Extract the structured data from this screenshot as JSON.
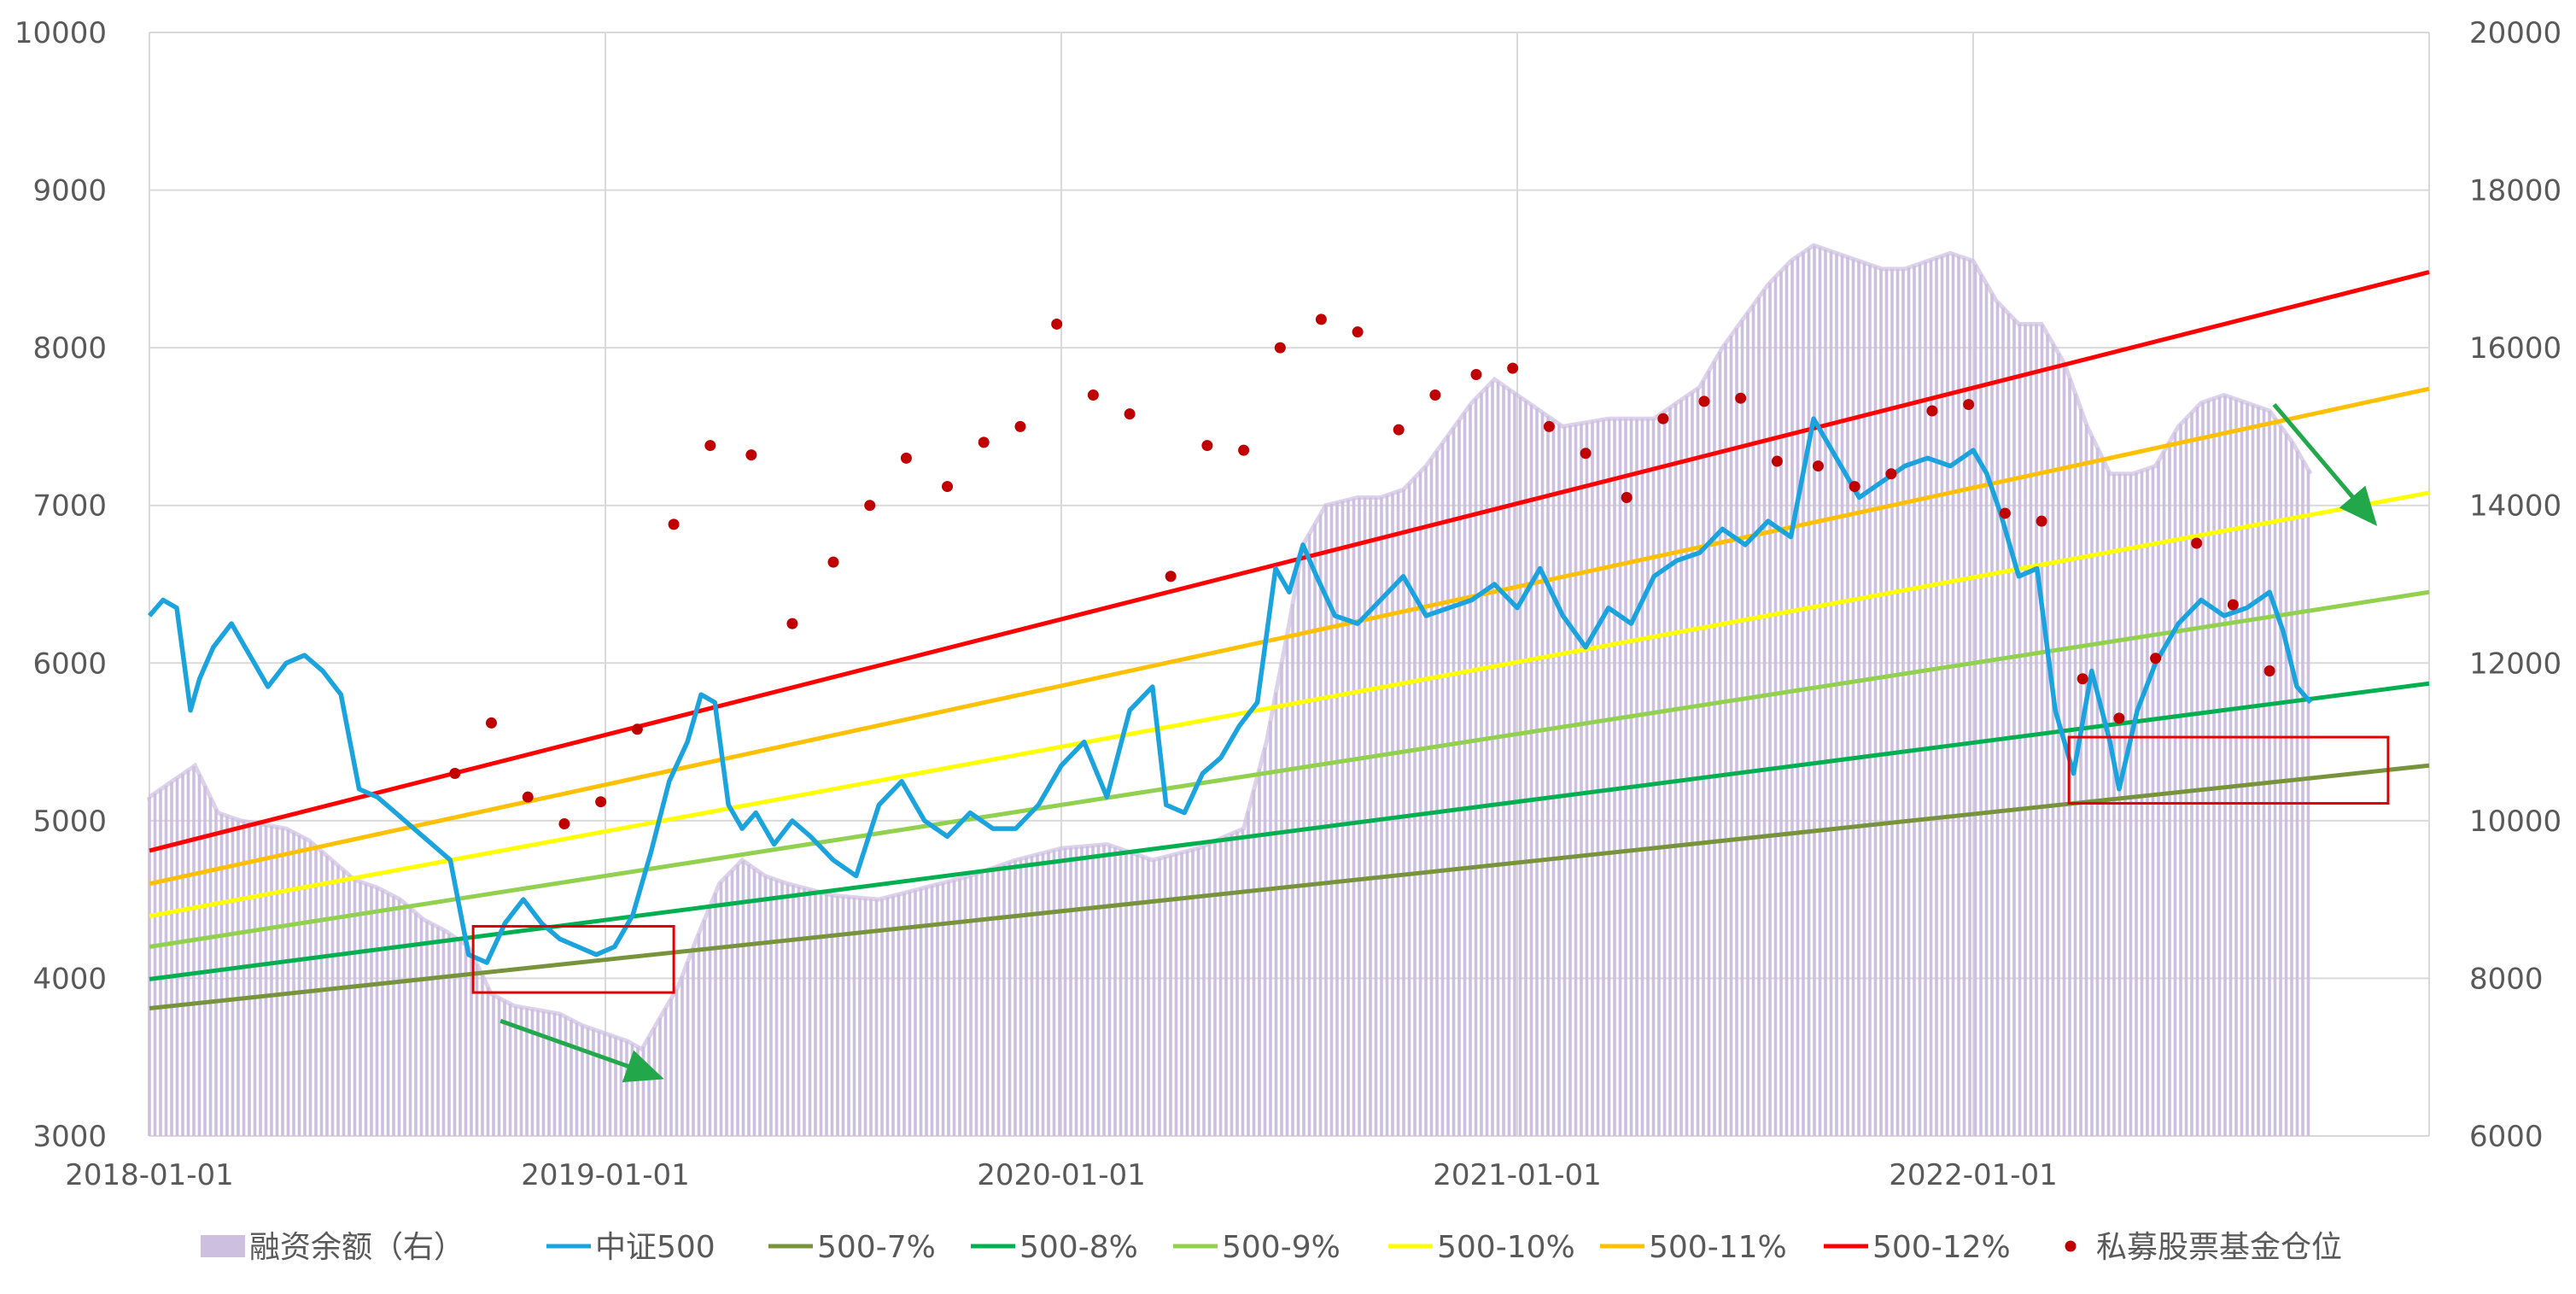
{
  "chart_data": {
    "type": "line",
    "title": "",
    "x_ticks": [
      "2018-01-01",
      "2019-01-01",
      "2020-01-01",
      "2021-01-01",
      "2022-01-01"
    ],
    "x_range": [
      2018.0,
      2023.0
    ],
    "y_left": {
      "min": 3000,
      "max": 10000,
      "ticks": [
        "3000",
        "4000",
        "5000",
        "6000",
        "7000",
        "8000",
        "9000",
        "10000"
      ]
    },
    "y_right": {
      "min": 6000,
      "max": 20000,
      "ticks": [
        "6000",
        "8000",
        "10000",
        "12000",
        "14000",
        "16000",
        "18000",
        "20000"
      ]
    },
    "grid": true,
    "legend_position": "bottom",
    "legend": [
      {
        "key": "margin",
        "label": "融资余额（右）"
      },
      {
        "key": "csi500",
        "label": "中证500"
      },
      {
        "key": "g7",
        "label": "500-7%"
      },
      {
        "key": "g8",
        "label": "500-8%"
      },
      {
        "key": "g9",
        "label": "500-9%"
      },
      {
        "key": "g10",
        "label": "500-10%"
      },
      {
        "key": "g11",
        "label": "500-11%"
      },
      {
        "key": "g12",
        "label": "500-12%"
      },
      {
        "key": "position",
        "label": "私募股票基金仓位"
      }
    ],
    "colors": {
      "margin": "#cdbfe0",
      "csi500": "#1aa3dc",
      "g7": "#77933c",
      "g8": "#00b050",
      "g9": "#92d050",
      "g10": "#ffff00",
      "g11": "#ffc000",
      "g12": "#ff0000",
      "position": "#c00000",
      "box": "#e00000",
      "arrow": "#22a84a",
      "grid": "#d9d9d9",
      "text": "#595959"
    },
    "growth_lines": [
      {
        "key": "g7",
        "name": "500-7%",
        "start": 3810,
        "end": 5350
      },
      {
        "key": "g8",
        "name": "500-8%",
        "start": 3995,
        "end": 5870
      },
      {
        "key": "g9",
        "name": "500-9%",
        "start": 4200,
        "end": 6450
      },
      {
        "key": "g10",
        "name": "500-10%",
        "start": 4395,
        "end": 7080
      },
      {
        "key": "g11",
        "name": "500-11%",
        "start": 4600,
        "end": 7740
      },
      {
        "key": "g12",
        "name": "500-12%",
        "start": 4810,
        "end": 8480
      }
    ],
    "series_csi500": {
      "x": [
        2018.0,
        2018.03,
        2018.06,
        2018.09,
        2018.11,
        2018.14,
        2018.18,
        2018.22,
        2018.26,
        2018.3,
        2018.34,
        2018.38,
        2018.42,
        2018.46,
        2018.5,
        2018.54,
        2018.58,
        2018.62,
        2018.66,
        2018.7,
        2018.74,
        2018.78,
        2018.82,
        2018.86,
        2018.9,
        2018.94,
        2018.98,
        2019.02,
        2019.06,
        2019.1,
        2019.14,
        2019.18,
        2019.21,
        2019.24,
        2019.27,
        2019.3,
        2019.33,
        2019.37,
        2019.41,
        2019.45,
        2019.5,
        2019.55,
        2019.6,
        2019.65,
        2019.7,
        2019.75,
        2019.8,
        2019.85,
        2019.9,
        2019.95,
        2020.0,
        2020.05,
        2020.1,
        2020.15,
        2020.2,
        2020.23,
        2020.27,
        2020.31,
        2020.35,
        2020.39,
        2020.43,
        2020.47,
        2020.5,
        2020.53,
        2020.56,
        2020.6,
        2020.65,
        2020.7,
        2020.75,
        2020.8,
        2020.85,
        2020.9,
        2020.95,
        2021.0,
        2021.05,
        2021.1,
        2021.15,
        2021.2,
        2021.25,
        2021.3,
        2021.35,
        2021.4,
        2021.45,
        2021.5,
        2021.55,
        2021.6,
        2021.65,
        2021.7,
        2021.75,
        2021.8,
        2021.85,
        2021.9,
        2021.95,
        2022.0,
        2022.03,
        2022.06,
        2022.1,
        2022.14,
        2022.18,
        2022.22,
        2022.26,
        2022.3,
        2022.32,
        2022.36,
        2022.4,
        2022.45,
        2022.5,
        2022.55,
        2022.6,
        2022.65,
        2022.68,
        2022.71,
        2022.74
      ],
      "values": [
        6300,
        6400,
        6350,
        5700,
        5900,
        6100,
        6250,
        6050,
        5850,
        6000,
        6050,
        5950,
        5800,
        5200,
        5150,
        5050,
        4950,
        4850,
        4750,
        4150,
        4100,
        4350,
        4500,
        4350,
        4250,
        4200,
        4150,
        4200,
        4400,
        4800,
        5250,
        5500,
        5800,
        5750,
        5100,
        4950,
        5050,
        4850,
        5000,
        4900,
        4750,
        4650,
        5100,
        5250,
        5000,
        4900,
        5050,
        4950,
        4950,
        5100,
        5350,
        5500,
        5150,
        5700,
        5850,
        5100,
        5050,
        5300,
        5400,
        5600,
        5750,
        6600,
        6450,
        6750,
        6550,
        6300,
        6250,
        6400,
        6550,
        6300,
        6350,
        6400,
        6500,
        6350,
        6600,
        6300,
        6100,
        6350,
        6250,
        6550,
        6650,
        6700,
        6850,
        6750,
        6900,
        6800,
        7550,
        7300,
        7050,
        7150,
        7250,
        7300,
        7250,
        7350,
        7200,
        6950,
        6550,
        6600,
        5700,
        5300,
        5950,
        5500,
        5200,
        5700,
        6000,
        6250,
        6400,
        6300,
        6350,
        6450,
        6200,
        5850,
        5750
      ]
    },
    "series_margin": {
      "x": [
        2018.0,
        2018.05,
        2018.1,
        2018.15,
        2018.2,
        2018.25,
        2018.3,
        2018.35,
        2018.4,
        2018.45,
        2018.5,
        2018.55,
        2018.6,
        2018.65,
        2018.7,
        2018.75,
        2018.8,
        2018.85,
        2018.9,
        2018.95,
        2019.0,
        2019.05,
        2019.08,
        2019.12,
        2019.16,
        2019.2,
        2019.25,
        2019.3,
        2019.35,
        2019.4,
        2019.5,
        2019.6,
        2019.7,
        2019.8,
        2019.9,
        2020.0,
        2020.1,
        2020.2,
        2020.3,
        2020.4,
        2020.45,
        2020.5,
        2020.53,
        2020.58,
        2020.65,
        2020.7,
        2020.75,
        2020.8,
        2020.85,
        2020.9,
        2020.95,
        2021.0,
        2021.05,
        2021.1,
        2021.2,
        2021.3,
        2021.35,
        2021.4,
        2021.45,
        2021.5,
        2021.55,
        2021.6,
        2021.65,
        2021.7,
        2021.75,
        2021.8,
        2021.85,
        2021.9,
        2021.95,
        2022.0,
        2022.05,
        2022.1,
        2022.15,
        2022.2,
        2022.25,
        2022.3,
        2022.35,
        2022.4,
        2022.45,
        2022.5,
        2022.55,
        2022.6,
        2022.65,
        2022.7,
        2022.74
      ],
      "values": [
        10300,
        10500,
        10700,
        10100,
        10000,
        9950,
        9900,
        9750,
        9500,
        9250,
        9150,
        9000,
        8750,
        8600,
        8400,
        7800,
        7650,
        7600,
        7550,
        7400,
        7300,
        7200,
        7100,
        7500,
        7900,
        8500,
        9200,
        9500,
        9300,
        9200,
        9050,
        9000,
        9150,
        9300,
        9500,
        9650,
        9700,
        9500,
        9650,
        9900,
        11000,
        12500,
        13500,
        14000,
        14100,
        14100,
        14200,
        14500,
        14900,
        15300,
        15600,
        15400,
        15200,
        15000,
        15100,
        15100,
        15300,
        15500,
        16000,
        16400,
        16800,
        17100,
        17300,
        17200,
        17100,
        17000,
        17000,
        17100,
        17200,
        17100,
        16600,
        16300,
        16300,
        15800,
        15000,
        14400,
        14400,
        14500,
        15000,
        15300,
        15400,
        15300,
        15200,
        14800,
        14400
      ]
    },
    "series_position": {
      "x": [
        2018.67,
        2018.75,
        2018.83,
        2018.91,
        2018.99,
        2019.07,
        2019.15,
        2019.23,
        2019.32,
        2019.41,
        2019.5,
        2019.58,
        2019.66,
        2019.75,
        2019.83,
        2019.91,
        2019.99,
        2020.07,
        2020.15,
        2020.24,
        2020.32,
        2020.4,
        2020.48,
        2020.57,
        2020.65,
        2020.74,
        2020.82,
        2020.91,
        2020.99,
        2021.07,
        2021.15,
        2021.24,
        2021.32,
        2021.41,
        2021.49,
        2021.57,
        2021.66,
        2021.74,
        2021.82,
        2021.91,
        2021.99,
        2022.07,
        2022.15,
        2022.24,
        2022.32,
        2022.4,
        2022.49,
        2022.57,
        2022.65
      ],
      "values": [
        5300,
        5620,
        5150,
        4980,
        5120,
        5580,
        6880,
        7380,
        7320,
        6250,
        6640,
        7000,
        7300,
        7120,
        7400,
        7500,
        8150,
        7700,
        7580,
        6550,
        7380,
        7350,
        8000,
        8180,
        8100,
        7480,
        7700,
        7830,
        7870,
        7500,
        7330,
        7050,
        7550,
        7660,
        7680,
        7280,
        7250,
        7120,
        7200,
        7600,
        7640,
        6950,
        6900,
        5900,
        5650,
        6030,
        6760,
        6370,
        5950
      ]
    },
    "annotations": [
      {
        "type": "box",
        "x0": 2018.71,
        "x1": 2019.15,
        "y0": 3910,
        "y1": 4330
      },
      {
        "type": "box",
        "x0": 2022.21,
        "x1": 2022.91,
        "y0": 5110,
        "y1": 5530
      },
      {
        "type": "arrow",
        "x0": 2018.77,
        "y0": 3730,
        "x1": 2019.12,
        "y1": 3370
      },
      {
        "type": "arrow",
        "x0": 2022.66,
        "y0": 7640,
        "x1": 2022.88,
        "y1": 6890
      }
    ]
  }
}
